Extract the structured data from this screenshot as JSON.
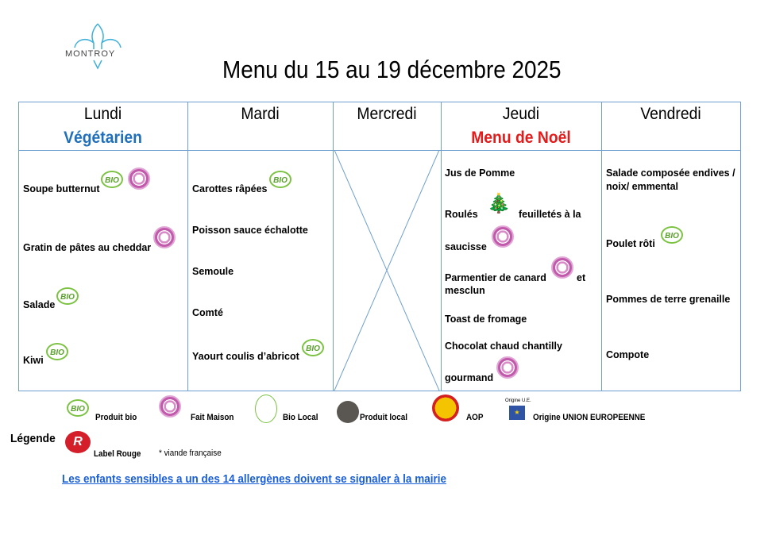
{
  "logo": {
    "text": "MONTROY"
  },
  "title": "Menu du 15 au 19 décembre 2025",
  "days": [
    {
      "name": "Lundi",
      "subtitle": "Végétarien",
      "items": [
        "Soupe butternut",
        "Gratin de pâtes au cheddar",
        "Salade",
        "Kiwi"
      ]
    },
    {
      "name": "Mardi",
      "items": [
        "Carottes râpées",
        "Poisson sauce échalotte",
        "Semoule",
        "Comté",
        "Yaourt coulis d’abricot"
      ]
    },
    {
      "name": "Mercredi",
      "items": []
    },
    {
      "name": "Jeudi",
      "subtitle": "Menu de Noël",
      "items": [
        "Jus de Pomme",
        "Roulés",
        "feuilletés à la",
        "saucisse",
        "Parmentier de canard",
        "et",
        "mesclun",
        "Toast de fromage",
        "Chocolat chaud chantilly",
        "gourmand"
      ]
    },
    {
      "name": "Vendredi",
      "items": [
        "Salade composée endives /",
        "noix/ emmental",
        "Poulet rôti",
        "Pommes de terre grenaille",
        "Compote"
      ]
    }
  ],
  "bio_icon_text": "BIO",
  "legend": {
    "title": "Légende",
    "items": [
      "Produit bio",
      "Fait Maison",
      "Bio Local",
      "Produit local",
      "AOP",
      "Origine UNION EUROPEENNE",
      "Label Rouge",
      "* viande française"
    ],
    "eu_caption": "Origine U.E."
  },
  "allergen_notice": "Les enfants sensibles a un des 14 allergènes doivent se signaler à la mairie",
  "colors": {
    "border": "#6f9fd0",
    "vegetarian": "#1f6fba",
    "noel": "#e31b1b",
    "link": "#1a5fd6"
  }
}
